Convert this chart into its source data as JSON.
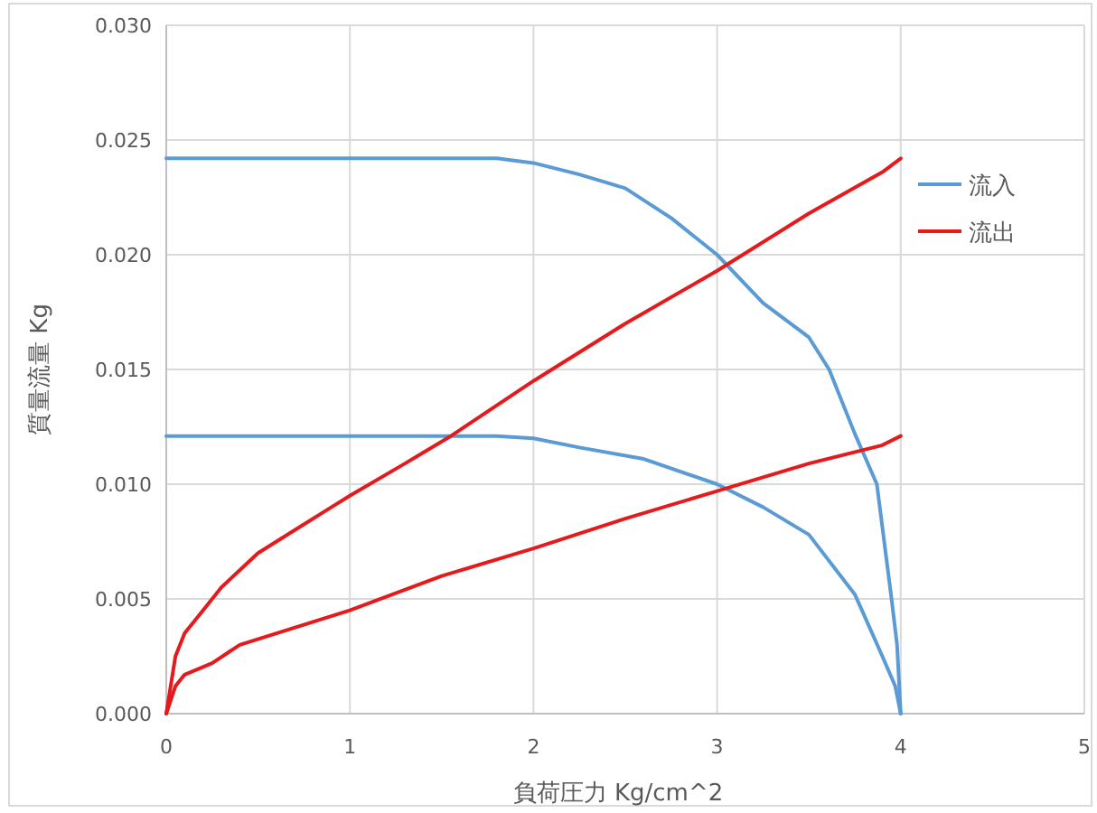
{
  "chart_data": {
    "type": "line",
    "xlabel": "負荷圧力 Kg/cm^2",
    "ylabel": "質量流量 Kg",
    "xlim": [
      0,
      5
    ],
    "xticks": [
      0,
      1,
      2,
      3,
      4,
      5
    ],
    "ylim": [
      0,
      0.03
    ],
    "yticks": [
      {
        "value": 0,
        "label": "0.000"
      },
      {
        "value": 0.005,
        "label": "0.005"
      },
      {
        "value": 0.01,
        "label": "0.010"
      },
      {
        "value": 0.015,
        "label": "0.015"
      },
      {
        "value": 0.02,
        "label": "0.020"
      },
      {
        "value": 0.025,
        "label": "0.025"
      },
      {
        "value": 0.03,
        "label": "0.030"
      }
    ],
    "grid": true,
    "legend": "right",
    "series": [
      {
        "name": "流入",
        "color": "#5b9bd5",
        "x": [
          0,
          1.8,
          2,
          2.25,
          2.5,
          2.75,
          3,
          3.25,
          3.5,
          3.61,
          3.75,
          3.87,
          3.95,
          3.98,
          4
        ],
        "values": [
          0.0242,
          0.0242,
          0.024,
          0.0235,
          0.0229,
          0.0216,
          0.02,
          0.0179,
          0.0164,
          0.015,
          0.0122,
          0.01,
          0.005,
          0.003,
          0
        ]
      },
      {
        "color": "#5b9bd5",
        "x": [
          0,
          1.8,
          2,
          2.25,
          2.6,
          3,
          3.25,
          3.5,
          3.75,
          3.9,
          3.97,
          4
        ],
        "values": [
          0.0121,
          0.0121,
          0.012,
          0.0116,
          0.0111,
          0.01,
          0.009,
          0.0078,
          0.0052,
          0.0025,
          0.0012,
          0
        ]
      },
      {
        "name": "流出",
        "color": "#e41a1c",
        "x": [
          0,
          0.05,
          0.1,
          0.2,
          0.3,
          0.5,
          0.7,
          0.9,
          1.0,
          1.3,
          1.55,
          2,
          2.5,
          3,
          3.5,
          3.9,
          4
        ],
        "values": [
          0,
          0.0025,
          0.0035,
          0.0045,
          0.0055,
          0.007,
          0.008,
          0.009,
          0.0095,
          0.0109,
          0.0121,
          0.0145,
          0.017,
          0.0193,
          0.0218,
          0.0236,
          0.0242
        ]
      },
      {
        "color": "#e41a1c",
        "x": [
          0,
          0.05,
          0.1,
          0.25,
          0.4,
          0.6,
          0.8,
          1.0,
          1.5,
          2,
          2.5,
          3,
          3.5,
          3.9,
          4
        ],
        "values": [
          0,
          0.0012,
          0.0017,
          0.0022,
          0.003,
          0.0035,
          0.004,
          0.0045,
          0.006,
          0.0072,
          0.0085,
          0.0097,
          0.0109,
          0.0117,
          0.0121
        ]
      }
    ]
  }
}
